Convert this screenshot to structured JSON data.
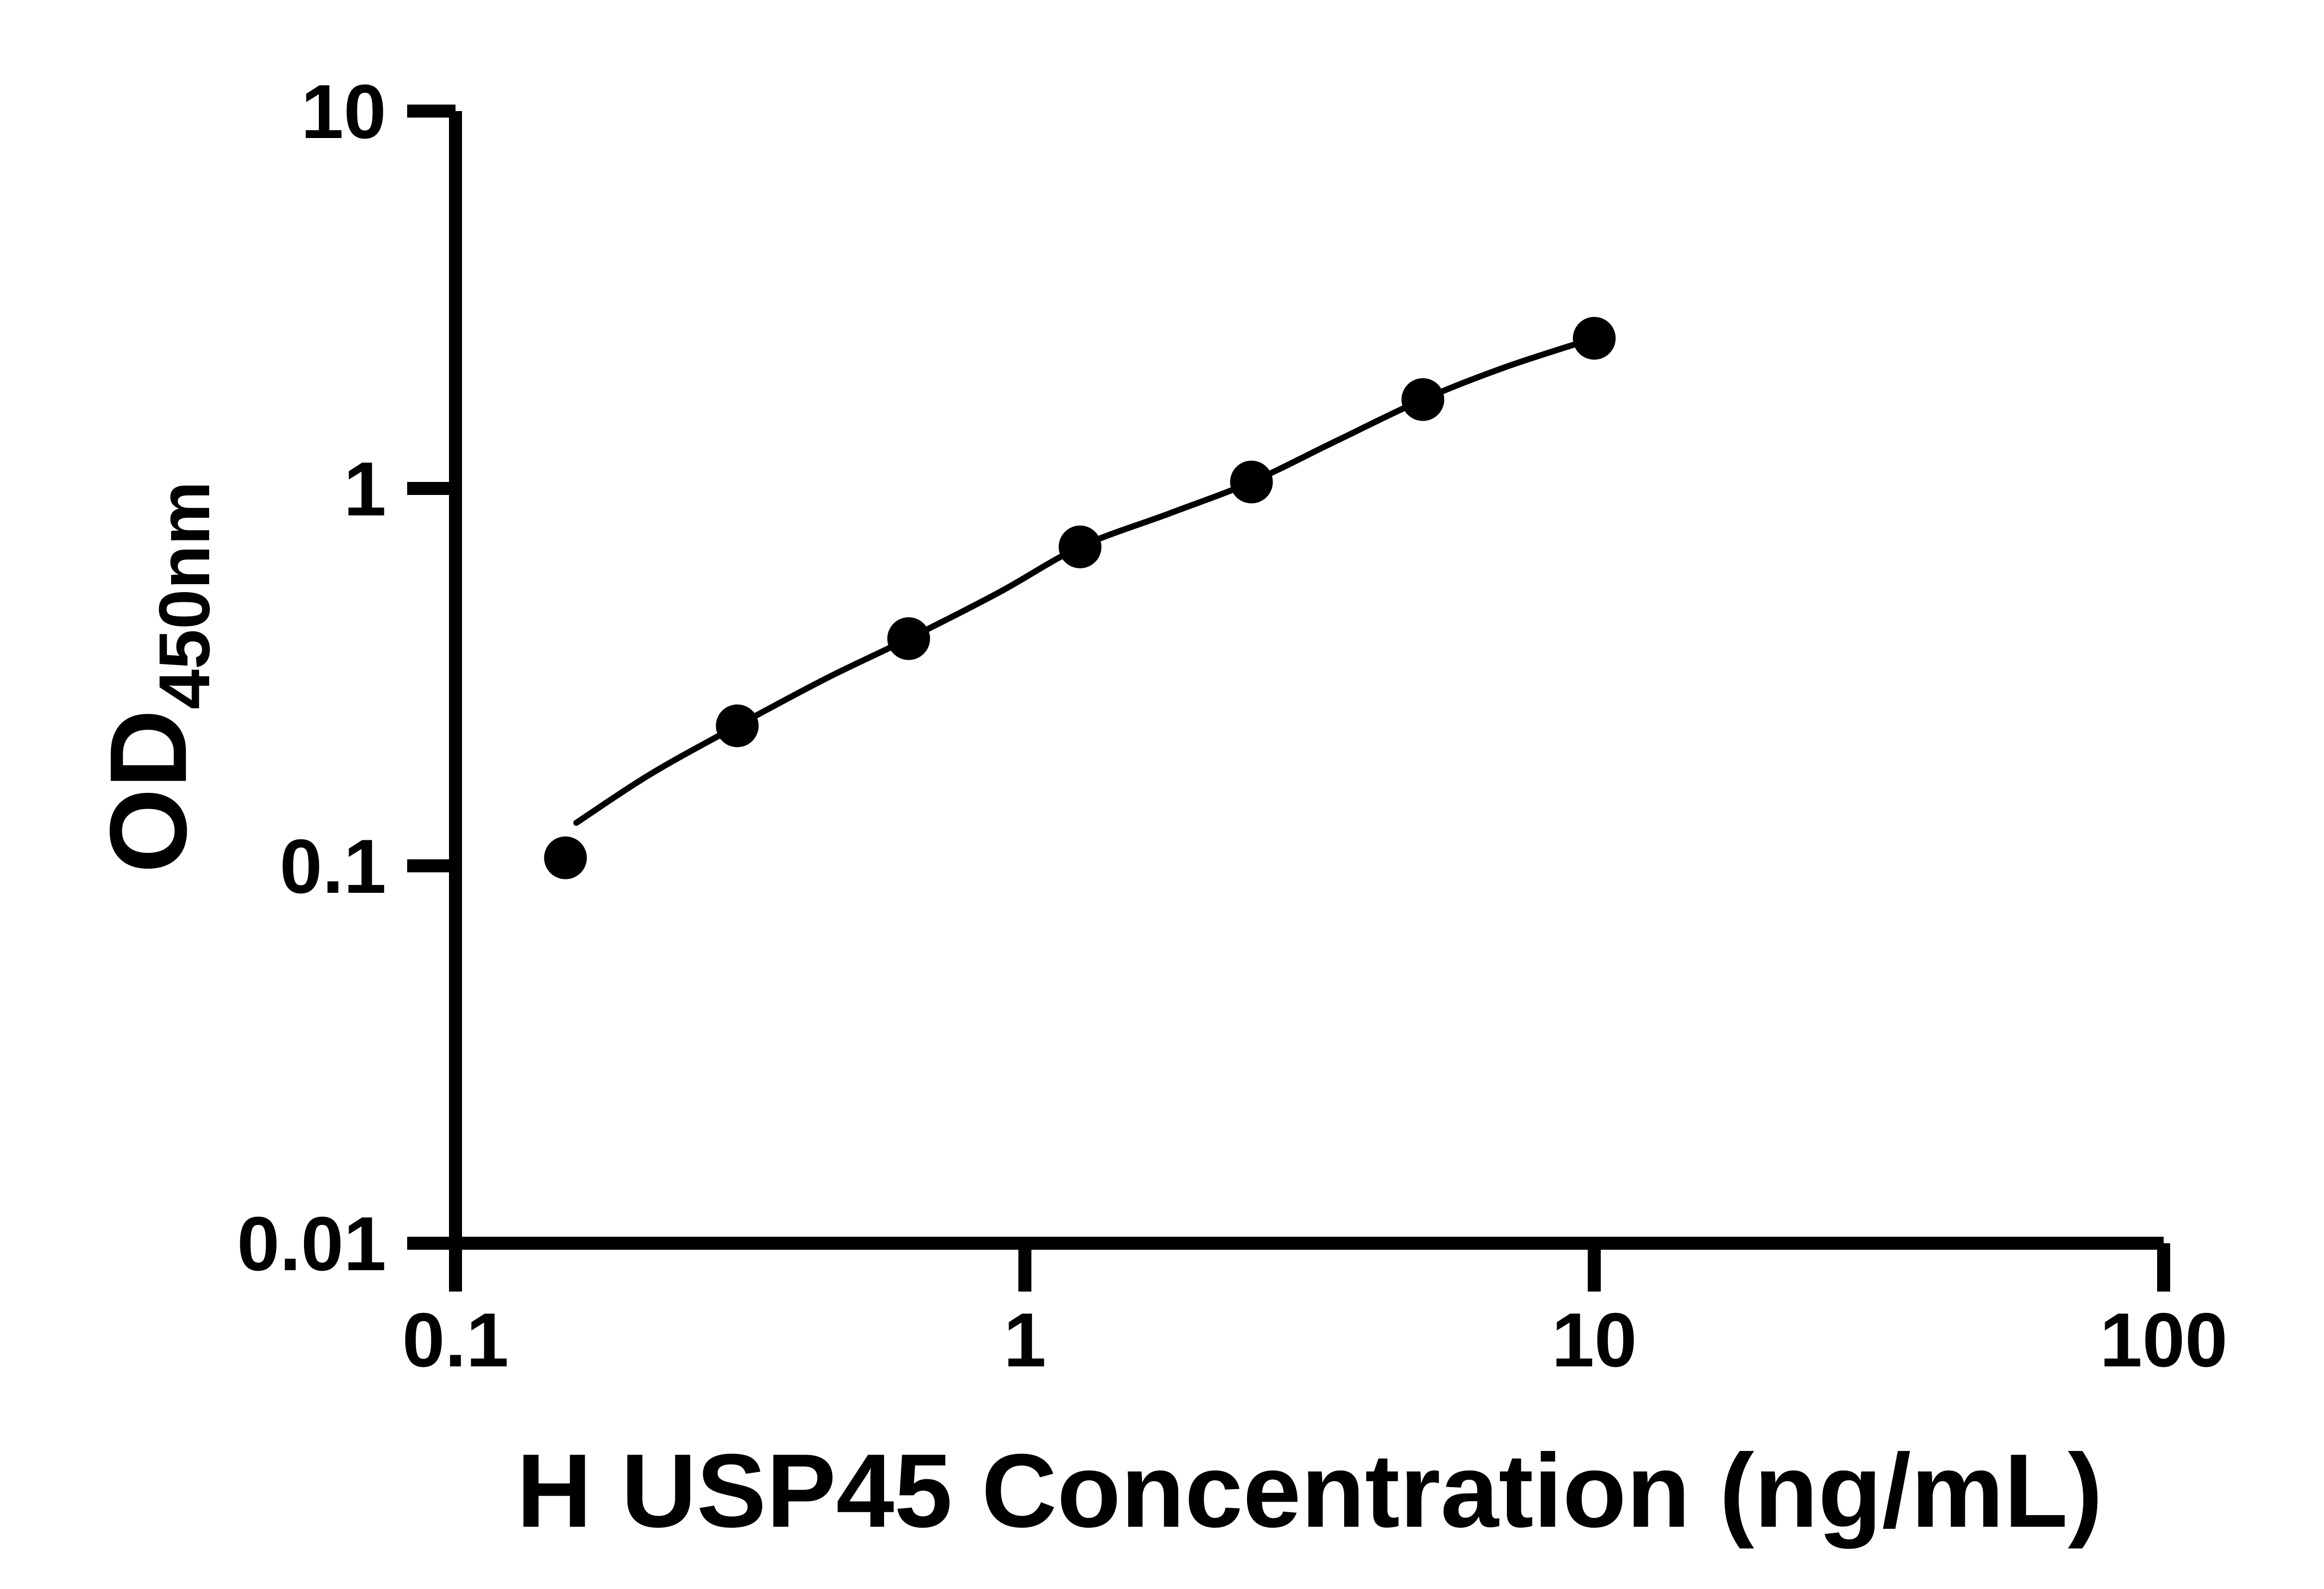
{
  "chart_data": {
    "type": "scatter",
    "title": "",
    "xlabel": "H USP45 Concentration (ng/mL)",
    "ylabel_main": "OD",
    "ylabel_sub": "450nm",
    "x_scale": "log",
    "y_scale": "log",
    "xlim": [
      0.1,
      100
    ],
    "ylim": [
      0.01,
      10
    ],
    "x_ticks": [
      "0.1",
      "1",
      "10",
      "100"
    ],
    "x_tick_values": [
      0.1,
      1,
      10,
      100
    ],
    "y_ticks": [
      "0.01",
      "0.1",
      "1",
      "10"
    ],
    "y_tick_values": [
      0.01,
      0.1,
      1,
      10
    ],
    "grid": false,
    "legend": "none",
    "colors": {
      "marker": "#000000",
      "line": "#000000",
      "axis": "#000000",
      "text": "#000000",
      "background": "#ffffff"
    },
    "series": [
      {
        "name": "H USP45",
        "x": [
          0.156,
          0.3125,
          0.625,
          1.25,
          2.5,
          5,
          10
        ],
        "y": [
          0.105,
          0.235,
          0.4,
          0.7,
          1.04,
          1.72,
          2.5
        ]
      }
    ],
    "trend_line": {
      "x": [
        0.163,
        0.22,
        0.3125,
        0.45,
        0.625,
        0.9,
        1.25,
        1.8,
        2.5,
        3.5,
        5,
        7,
        10
      ],
      "y": [
        0.13,
        0.175,
        0.235,
        0.315,
        0.4,
        0.53,
        0.7,
        0.86,
        1.04,
        1.33,
        1.72,
        2.1,
        2.5
      ]
    }
  }
}
